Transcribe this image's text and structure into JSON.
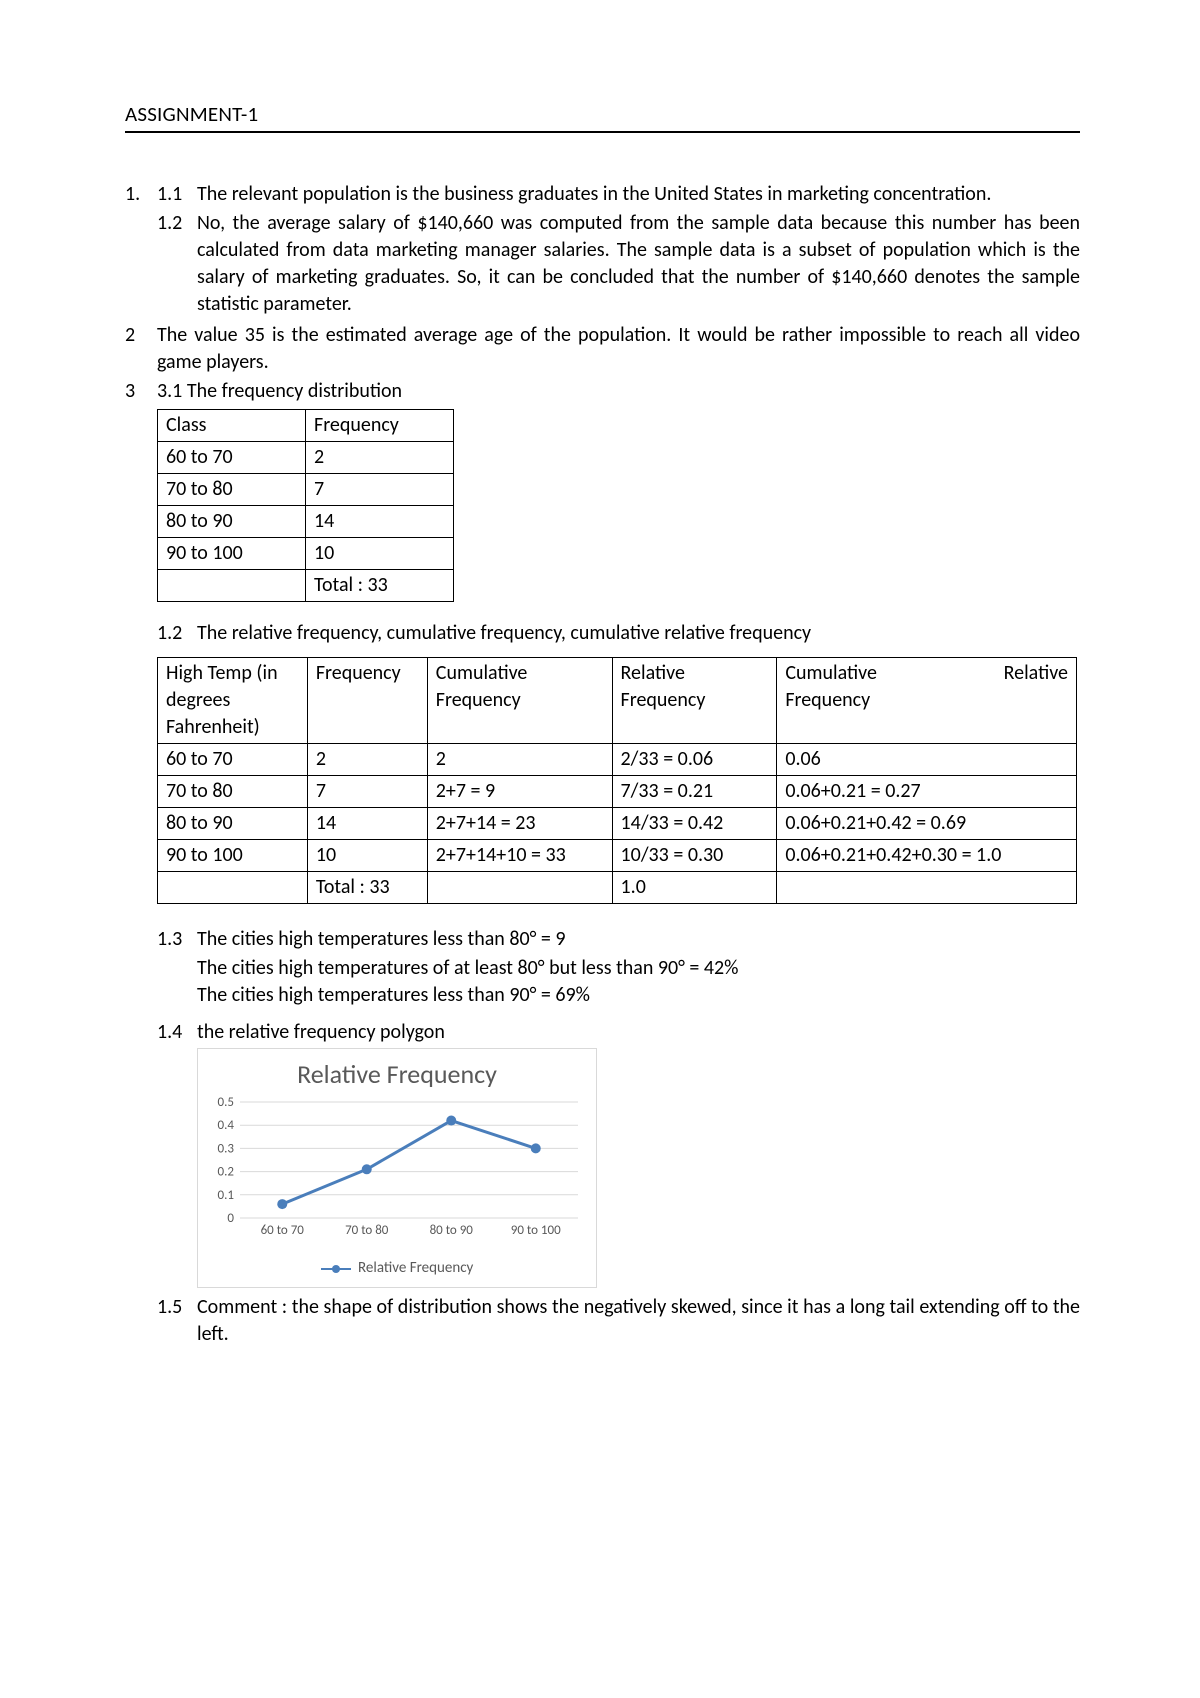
{
  "header": {
    "title": "ASSIGNMENT-1"
  },
  "q1": {
    "num": "1.",
    "p1_num": "1.1",
    "p1_text": "The relevant population is the business graduates in the United States in marketing concentration.",
    "p2_num": "1.2",
    "p2_text": "No, the average salary of $140,660 was computed from the sample data because this number has been calculated from data marketing manager salaries. The sample data is a subset of population which is the salary of marketing graduates. So, it can be concluded that the number of $140,660 denotes the sample statistic parameter."
  },
  "q2": {
    "num": "2",
    "text": "The value 35 is the estimated average age of the population. It would be rather impossible to reach all video game players."
  },
  "q3": {
    "num": "3",
    "p1_num": "3.1",
    "p1_text": "The frequency distribution"
  },
  "table1": {
    "headers": [
      "Class",
      "Frequency"
    ],
    "rows": [
      [
        "60 to 70",
        "2"
      ],
      [
        "70 to 80",
        "7"
      ],
      [
        "80 to 90",
        "14"
      ],
      [
        "90 to 100",
        "10"
      ],
      [
        "",
        "Total : 33"
      ]
    ]
  },
  "sec12": {
    "num": "1.2",
    "text": "The relative frequency, cumulative frequency, cumulative relative frequency"
  },
  "table2": {
    "h1": "High Temp (in degrees Fahrenheit)",
    "h2": "Frequency",
    "h3": "Cumulative Frequency",
    "h4": "Relative Frequency",
    "h5a": "Cumulative",
    "h5b": "Relative",
    "h5c": "Frequency",
    "rows": [
      [
        "60 to 70",
        "2",
        "2",
        "2/33 = 0.06",
        "0.06"
      ],
      [
        "70 to 80",
        "7",
        "2+7 = 9",
        "7/33 = 0.21",
        "0.06+0.21 = 0.27"
      ],
      [
        "80 to 90",
        "14",
        "2+7+14 = 23",
        "14/33 = 0.42",
        "0.06+0.21+0.42 = 0.69"
      ],
      [
        "90 to 100",
        "10",
        "2+7+14+10 = 33",
        "10/33 = 0.30",
        "0.06+0.21+0.42+0.30 = 1.0"
      ],
      [
        "",
        "Total : 33",
        "",
        "1.0",
        ""
      ]
    ]
  },
  "sec13": {
    "num": "1.3",
    "line1": "The cities high temperatures less than 80° = 9",
    "line2": "The cities high temperatures of at least 80° but less than 90° = 42%",
    "line3": "The cities high temperatures less than 90° = 69%"
  },
  "sec14": {
    "num": "1.4",
    "text": "the relative frequency polygon"
  },
  "chart": {
    "title": "Relative Frequency",
    "legend_label": "Relative Frequency",
    "y_ticks": [
      "0",
      "0.1",
      "0.2",
      "0.3",
      "0.4",
      "0.5"
    ],
    "y_max": 0.5,
    "x_labels": [
      "60 to 70",
      "70 to 80",
      "80 to 90",
      "90 to 100"
    ],
    "values": [
      0.06,
      0.21,
      0.42,
      0.3
    ],
    "line_color": "#4a7ebb",
    "marker_color": "#4a7ebb",
    "grid_color": "#d9d9d9",
    "axis_text_color": "#595959",
    "line_width": 3,
    "marker_radius": 5
  },
  "sec15": {
    "num": "1.5",
    "text": "Comment : the shape of distribution shows the negatively skewed, since it has a long tail extending off to the left."
  }
}
